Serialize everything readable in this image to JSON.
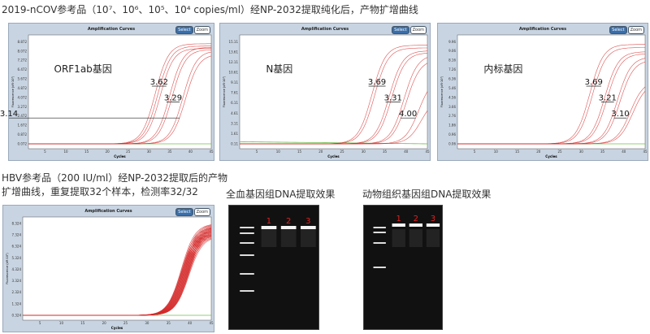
{
  "heading_top": "2019-nCOV参考品（10⁷、10⁶、10⁵、10⁴ copies/ml）经NP-2032提取纯化后，产物扩增曲线",
  "heading_hbv": [
    "HBV参考品（200 IU/ml）经NP-2032提取后的产物",
    "扩增曲线，重复提取32个样本，检测率32/32"
  ],
  "heading_gel1": "全血基因组DNA提取效果",
  "heading_gel2": "动物组织基因组DNA提取效果",
  "panel_ui": {
    "title": "Amplification Curves",
    "select": "Select",
    "zoom": "Zoom",
    "xlabel": "Cycles",
    "ylabel": "Fluorescence (dR·10³)"
  },
  "colors": {
    "curve": "#d42a2a",
    "baseline": "#6fbf4a",
    "panel_bg": "#c8d4e2",
    "lane_label": "#e02020"
  },
  "chart_data": [
    {
      "type": "line",
      "label": "ORF1ab基因",
      "xlim": [
        1,
        45
      ],
      "xticks": [
        5,
        10,
        15,
        20,
        25,
        30,
        35,
        40,
        45
      ],
      "yticks": [
        "0.072",
        "0.872",
        "1.672",
        "2.472",
        "3.272",
        "4.072",
        "4.872",
        "5.672",
        "6.472",
        "7.272",
        "8.072",
        "8.872"
      ],
      "ct_groups": [
        28.5,
        32,
        35.2
      ],
      "plateaus": [
        [
          8.7,
          8.5,
          8.3
        ],
        [
          8.4,
          8.2
        ],
        [
          8.1,
          7.8
        ]
      ],
      "annotations": [
        "3.62",
        "3.29",
        "3.14"
      ]
    },
    {
      "type": "line",
      "label": "N基因",
      "xlim": [
        1,
        45
      ],
      "xticks": [
        5,
        10,
        15,
        20,
        25,
        30,
        35,
        40,
        45
      ],
      "yticks": [
        "0.11",
        "1.61",
        "3.11",
        "4.61",
        "6.11",
        "7.61",
        "9.11",
        "10.61",
        "12.11",
        "13.61",
        "15.11"
      ],
      "ct_groups": [
        29,
        33,
        36.5,
        40
      ],
      "plateaus": [
        [
          14.6,
          14.2
        ],
        [
          13.8,
          13.5
        ],
        [
          13.2,
          12.5
        ],
        [
          10,
          7
        ]
      ],
      "annotations": [
        "3.69",
        "3.31",
        "4.00"
      ]
    },
    {
      "type": "line",
      "label": "内标基因",
      "xlim": [
        1,
        45
      ],
      "xticks": [
        5,
        10,
        15,
        20,
        25,
        30,
        35,
        40,
        45
      ],
      "yticks": [
        "0.06",
        "0.96",
        "1.86",
        "2.76",
        "3.66",
        "4.56",
        "5.46",
        "6.36",
        "7.26",
        "8.16",
        "9.06",
        "9.96"
      ],
      "ct_groups": [
        29,
        32.5,
        35.5,
        38.5
      ],
      "plateaus": [
        [
          9.7,
          9.4
        ],
        [
          9,
          8.8
        ],
        [
          8.5,
          8.2
        ],
        [
          6.2,
          6
        ]
      ],
      "annotations": [
        "3.69",
        "3.21",
        "3.10"
      ]
    },
    {
      "type": "line",
      "label": "",
      "xlim": [
        1,
        45
      ],
      "xticks": [
        5,
        10,
        15,
        20,
        25,
        30,
        35,
        40,
        45
      ],
      "yticks": [
        "0.324",
        "1.324",
        "2.324",
        "3.324",
        "4.324",
        "5.324",
        "6.324",
        "7.324",
        "8.324"
      ],
      "ct_groups": [
        35
      ],
      "replicates": 32,
      "plateaus": [
        [
          8.3,
          7.2
        ]
      ],
      "annotations": []
    }
  ],
  "gel1": {
    "lanes": [
      "1",
      "2",
      "3"
    ]
  },
  "gel2": {
    "lanes": [
      "1",
      "2",
      "3"
    ]
  }
}
